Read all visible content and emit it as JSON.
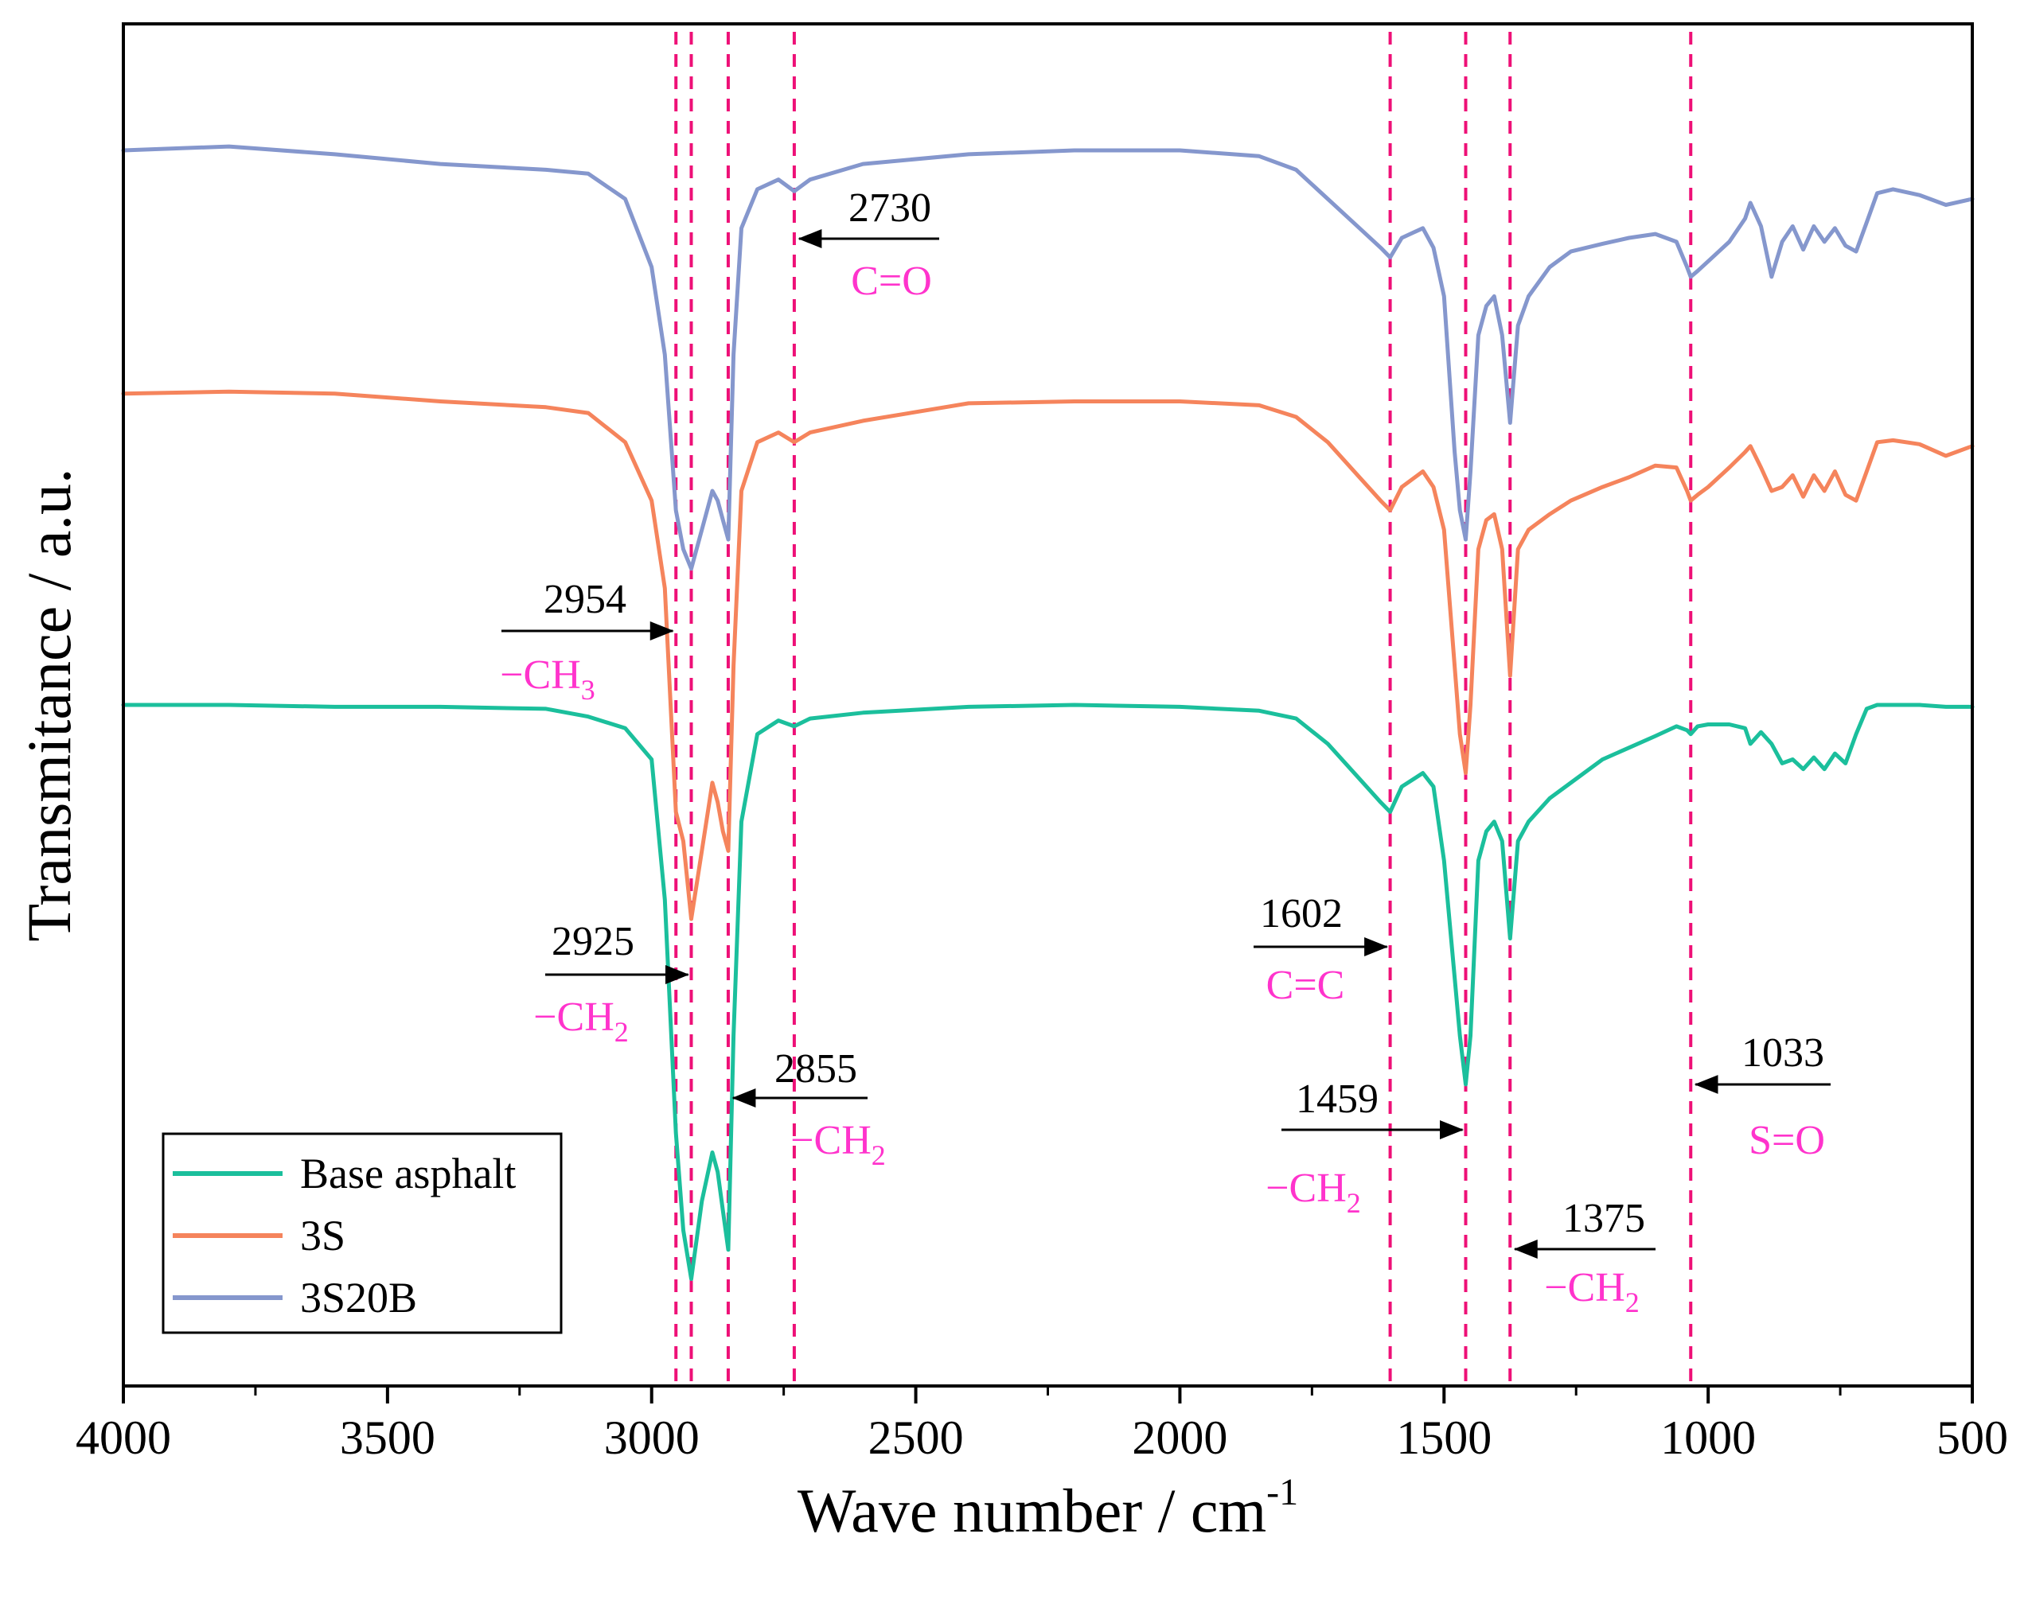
{
  "chart_data": {
    "type": "line",
    "title": "",
    "xlabel": "Wave number / cm",
    "xlabel_sup": "-1",
    "ylabel": "Transmitance  / a.u.",
    "xlim": [
      4000,
      500
    ],
    "x_ticks": [
      4000,
      3500,
      3000,
      2500,
      2000,
      1500,
      1000,
      500
    ],
    "x_tick_labels": [
      "4000",
      "3500",
      "3000",
      "2500",
      "2000",
      "1500",
      "1000",
      "500"
    ],
    "y_ticks_shown": false,
    "grid": false,
    "legend_position": "bottom-left",
    "colors": {
      "Base asphalt": "#1bbf9c",
      "3S": "#f5845c",
      "3S20B": "#8597cd",
      "marker_line": "#ee1077",
      "annotation_text": "#ff33cc"
    },
    "series": [
      {
        "name": "Base asphalt",
        "label": "Base asphalt",
        "x": [
          4000,
          3800,
          3600,
          3400,
          3200,
          3120,
          3050,
          3000,
          2975,
          2954,
          2940,
          2925,
          2905,
          2885,
          2875,
          2865,
          2855,
          2845,
          2830,
          2800,
          2760,
          2730,
          2700,
          2600,
          2400,
          2200,
          2000,
          1850,
          1780,
          1720,
          1660,
          1620,
          1602,
          1580,
          1540,
          1520,
          1500,
          1480,
          1470,
          1459,
          1450,
          1435,
          1420,
          1405,
          1390,
          1375,
          1360,
          1340,
          1300,
          1260,
          1200,
          1150,
          1100,
          1060,
          1040,
          1033,
          1020,
          1000,
          960,
          930,
          920,
          900,
          880,
          860,
          840,
          820,
          800,
          780,
          760,
          740,
          720,
          700,
          680,
          650,
          600,
          550,
          500
        ],
        "y": [
          2.0,
          2.0,
          1.99,
          1.99,
          1.98,
          1.94,
          1.88,
          1.72,
          1.0,
          -0.2,
          -0.7,
          -0.95,
          -0.55,
          -0.3,
          -0.4,
          -0.6,
          -0.8,
          0.3,
          1.4,
          1.85,
          1.92,
          1.89,
          1.93,
          1.96,
          1.99,
          2.0,
          1.99,
          1.97,
          1.93,
          1.8,
          1.62,
          1.5,
          1.45,
          1.58,
          1.65,
          1.58,
          1.2,
          0.6,
          0.3,
          0.05,
          0.3,
          1.2,
          1.35,
          1.4,
          1.3,
          0.8,
          1.3,
          1.4,
          1.52,
          1.6,
          1.72,
          1.78,
          1.84,
          1.89,
          1.87,
          1.85,
          1.89,
          1.9,
          1.9,
          1.88,
          1.8,
          1.86,
          1.8,
          1.7,
          1.72,
          1.67,
          1.73,
          1.67,
          1.75,
          1.7,
          1.85,
          1.98,
          2.0,
          2.0,
          2.0,
          1.99,
          1.99
        ]
      },
      {
        "name": "3S",
        "label": "3S",
        "x": [
          4000,
          3800,
          3600,
          3400,
          3200,
          3120,
          3050,
          3000,
          2975,
          2954,
          2940,
          2925,
          2905,
          2885,
          2875,
          2865,
          2855,
          2845,
          2830,
          2800,
          2760,
          2730,
          2700,
          2600,
          2400,
          2200,
          2000,
          1850,
          1780,
          1720,
          1660,
          1620,
          1602,
          1580,
          1540,
          1520,
          1500,
          1480,
          1470,
          1459,
          1450,
          1435,
          1420,
          1405,
          1390,
          1375,
          1360,
          1340,
          1300,
          1260,
          1200,
          1150,
          1100,
          1060,
          1040,
          1033,
          1020,
          1000,
          960,
          930,
          920,
          900,
          880,
          860,
          840,
          820,
          800,
          780,
          760,
          740,
          720,
          700,
          680,
          650,
          600,
          550,
          500
        ],
        "y": [
          3.6,
          3.61,
          3.6,
          3.56,
          3.53,
          3.5,
          3.35,
          3.05,
          2.6,
          1.45,
          1.3,
          0.9,
          1.25,
          1.6,
          1.5,
          1.35,
          1.25,
          2.2,
          3.1,
          3.35,
          3.4,
          3.35,
          3.4,
          3.46,
          3.55,
          3.56,
          3.56,
          3.54,
          3.48,
          3.35,
          3.17,
          3.05,
          3.0,
          3.12,
          3.2,
          3.12,
          2.9,
          2.2,
          1.85,
          1.65,
          2.0,
          2.8,
          2.95,
          2.98,
          2.8,
          2.15,
          2.8,
          2.9,
          2.98,
          3.05,
          3.12,
          3.17,
          3.23,
          3.22,
          3.1,
          3.05,
          3.08,
          3.12,
          3.22,
          3.3,
          3.33,
          3.22,
          3.1,
          3.12,
          3.18,
          3.07,
          3.18,
          3.1,
          3.2,
          3.08,
          3.05,
          3.2,
          3.35,
          3.36,
          3.34,
          3.28,
          3.33
        ]
      },
      {
        "name": "3S20B",
        "label": "3S20B",
        "x": [
          4000,
          3800,
          3600,
          3400,
          3200,
          3120,
          3050,
          3000,
          2975,
          2954,
          2940,
          2925,
          2905,
          2885,
          2875,
          2865,
          2855,
          2845,
          2830,
          2800,
          2760,
          2730,
          2700,
          2600,
          2400,
          2200,
          2000,
          1850,
          1780,
          1720,
          1660,
          1620,
          1602,
          1580,
          1540,
          1520,
          1500,
          1480,
          1470,
          1459,
          1450,
          1435,
          1420,
          1405,
          1390,
          1375,
          1360,
          1340,
          1300,
          1260,
          1200,
          1150,
          1100,
          1060,
          1040,
          1033,
          1020,
          1000,
          960,
          930,
          920,
          900,
          880,
          860,
          840,
          820,
          800,
          780,
          760,
          740,
          720,
          700,
          680,
          650,
          600,
          550,
          500
        ],
        "y": [
          4.85,
          4.87,
          4.83,
          4.78,
          4.75,
          4.73,
          4.6,
          4.25,
          3.8,
          3.0,
          2.8,
          2.7,
          2.9,
          3.1,
          3.05,
          2.95,
          2.85,
          3.8,
          4.45,
          4.65,
          4.7,
          4.64,
          4.7,
          4.78,
          4.83,
          4.85,
          4.85,
          4.82,
          4.75,
          4.6,
          4.45,
          4.35,
          4.3,
          4.4,
          4.45,
          4.35,
          4.1,
          3.3,
          3.0,
          2.85,
          3.2,
          3.9,
          4.05,
          4.1,
          3.9,
          3.45,
          3.95,
          4.1,
          4.25,
          4.33,
          4.37,
          4.4,
          4.42,
          4.38,
          4.25,
          4.2,
          4.23,
          4.28,
          4.38,
          4.5,
          4.58,
          4.46,
          4.2,
          4.38,
          4.46,
          4.34,
          4.46,
          4.38,
          4.45,
          4.36,
          4.33,
          4.48,
          4.63,
          4.65,
          4.62,
          4.57,
          4.6
        ]
      }
    ],
    "markers": [
      2954,
      2925,
      2855,
      2730,
      1602,
      1459,
      1375,
      1033
    ],
    "annotations": [
      {
        "number": "2954",
        "group": "−CH",
        "sub": "3",
        "peak": 2954,
        "arrow": "right"
      },
      {
        "number": "2925",
        "group": "−CH",
        "sub": "2",
        "peak": 2925,
        "arrow": "right"
      },
      {
        "number": "2855",
        "group": "−CH",
        "sub": "2",
        "peak": 2855,
        "arrow": "left"
      },
      {
        "number": "2730",
        "group": "C=O",
        "sub": "",
        "peak": 2730,
        "arrow": "left"
      },
      {
        "number": "1602",
        "group": "C=C",
        "sub": "",
        "peak": 1602,
        "arrow": "right"
      },
      {
        "number": "1459",
        "group": "−CH",
        "sub": "2",
        "peak": 1459,
        "arrow": "right"
      },
      {
        "number": "1375",
        "group": "−CH",
        "sub": "2",
        "peak": 1375,
        "arrow": "left"
      },
      {
        "number": "1033",
        "group": "S=O",
        "sub": "",
        "peak": 1033,
        "arrow": "left"
      }
    ]
  }
}
